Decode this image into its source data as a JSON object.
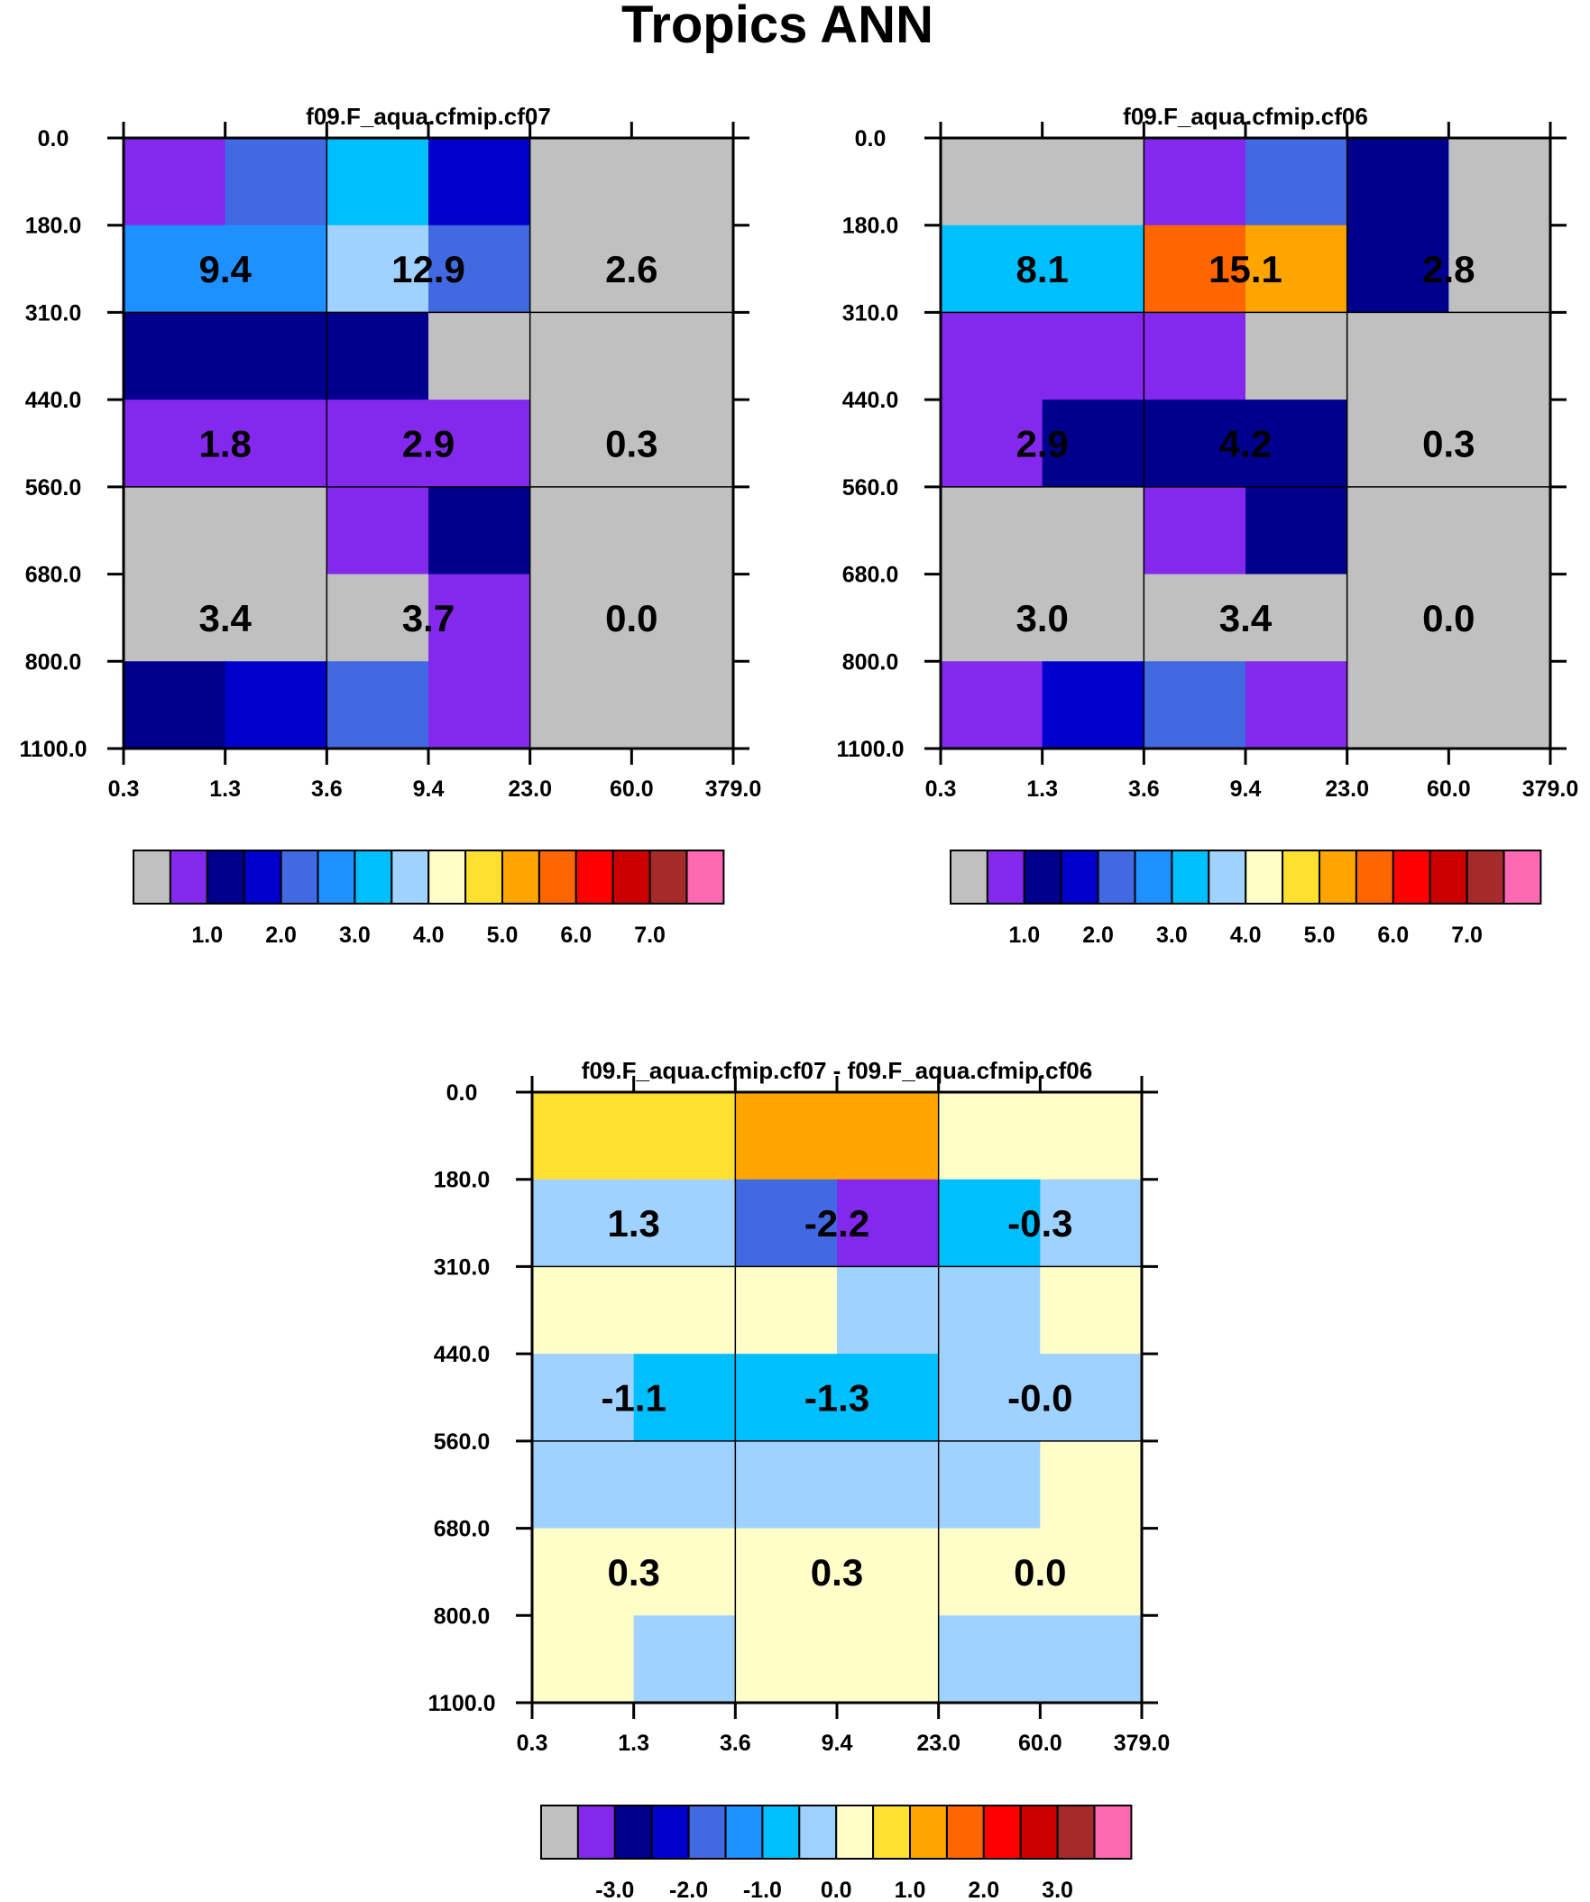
{
  "chart_data": {
    "title": "Tropics ANN",
    "x_tick_labels": [
      "0.3",
      "1.3",
      "3.6",
      "9.4",
      "23.0",
      "60.0",
      "379.0"
    ],
    "y_tick_labels": [
      "0.0",
      "180.0",
      "310.0",
      "440.0",
      "560.0",
      "680.0",
      "800.0",
      "1100.0"
    ],
    "panels": [
      {
        "type": "heatmap",
        "title": "f09.F_aqua.cfmip.cf07",
        "cells": [
          [
            1,
            4,
            6,
            3,
            0,
            0
          ],
          [
            5,
            5,
            7,
            4,
            0,
            0
          ],
          [
            2,
            2,
            2,
            0,
            0,
            0
          ],
          [
            1,
            1,
            1,
            1,
            0,
            0
          ],
          [
            0,
            0,
            1,
            2,
            0,
            0
          ],
          [
            0,
            0,
            0,
            1,
            0,
            0
          ],
          [
            2,
            3,
            4,
            1,
            0,
            0
          ]
        ],
        "group_values": [
          [
            "9.4",
            "12.9",
            "2.6"
          ],
          [
            "1.8",
            "2.9",
            "0.3"
          ],
          [
            "3.4",
            "3.7",
            "0.0"
          ]
        ],
        "colorbar_labels": [
          "1.0",
          "2.0",
          "3.0",
          "4.0",
          "5.0",
          "6.0",
          "7.0"
        ]
      },
      {
        "type": "heatmap",
        "title": "f09.F_aqua.cfmip.cf06",
        "cells": [
          [
            0,
            0,
            1,
            4,
            2,
            0
          ],
          [
            6,
            6,
            11,
            10,
            2,
            0
          ],
          [
            1,
            1,
            1,
            0,
            0,
            0
          ],
          [
            1,
            2,
            2,
            2,
            0,
            0
          ],
          [
            0,
            0,
            1,
            2,
            0,
            0
          ],
          [
            0,
            0,
            0,
            0,
            0,
            0
          ],
          [
            1,
            3,
            4,
            1,
            0,
            0
          ]
        ],
        "group_values": [
          [
            "8.1",
            "15.1",
            "2.8"
          ],
          [
            "2.9",
            "4.2",
            "0.3"
          ],
          [
            "3.0",
            "3.4",
            "0.0"
          ]
        ],
        "colorbar_labels": [
          "1.0",
          "2.0",
          "3.0",
          "4.0",
          "5.0",
          "6.0",
          "7.0"
        ]
      },
      {
        "type": "heatmap",
        "title": "f09.F_aqua.cfmip.cf07 - f09.F_aqua.cfmip.cf06",
        "cells": [
          [
            9,
            9,
            10,
            10,
            8,
            8
          ],
          [
            7,
            7,
            4,
            1,
            6,
            7
          ],
          [
            8,
            8,
            8,
            7,
            7,
            8
          ],
          [
            7,
            6,
            6,
            6,
            7,
            7
          ],
          [
            7,
            7,
            7,
            7,
            7,
            8
          ],
          [
            8,
            8,
            8,
            8,
            8,
            8
          ],
          [
            8,
            7,
            8,
            8,
            7,
            7
          ]
        ],
        "group_values": [
          [
            "1.3",
            "-2.2",
            "-0.3"
          ],
          [
            "-1.1",
            "-1.3",
            "-0.0"
          ],
          [
            "0.3",
            "0.3",
            "0.0"
          ]
        ],
        "colorbar_labels": [
          "-3.0",
          "-2.0",
          "-1.0",
          "0.0",
          "1.0",
          "2.0",
          "3.0"
        ]
      }
    ],
    "colors": [
      "#c0c0c0",
      "#8428ee",
      "#00008c",
      "#0000cd",
      "#4169e1",
      "#1e90ff",
      "#00bfff",
      "#a0d2ff",
      "#fffdc8",
      "#ffe030",
      "#ffa500",
      "#ff6600",
      "#ff0000",
      "#cc0000",
      "#a52a2a",
      "#ff69b4"
    ]
  }
}
